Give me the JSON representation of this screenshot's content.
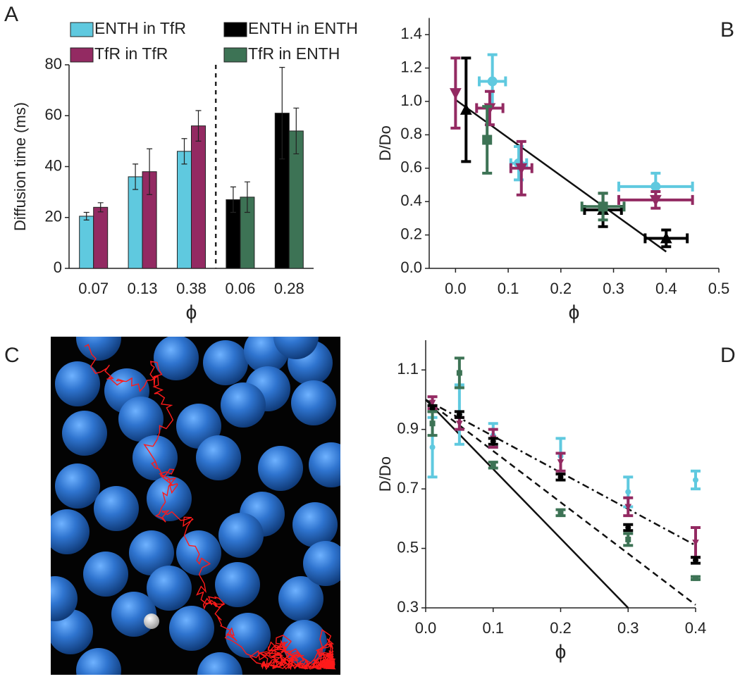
{
  "chart_data": [
    {
      "type": "bar",
      "panel_label": "A",
      "ylabel": "Diffusion time (ms)",
      "xlabel": "ϕ",
      "categories": [
        "0.07",
        "0.13",
        "0.38",
        "0.06",
        "0.28"
      ],
      "ylim": [
        0,
        80
      ],
      "yticks": [
        0,
        20,
        40,
        60,
        80
      ],
      "series": [
        {
          "name": "ENTH in TfR",
          "color": "#5fc9df",
          "values": [
            20.5,
            36,
            46,
            null,
            null
          ],
          "errors": [
            1.5,
            5,
            5,
            null,
            null
          ]
        },
        {
          "name": "TfR in TfR",
          "color": "#932a62",
          "values": [
            24,
            38,
            56,
            null,
            null
          ],
          "errors": [
            1.8,
            9,
            6,
            null,
            null
          ]
        },
        {
          "name": "ENTH in ENTH",
          "color": "#000000",
          "values": [
            null,
            null,
            null,
            27,
            61
          ],
          "errors": [
            null,
            null,
            null,
            5,
            18
          ]
        },
        {
          "name": "TfR in ENTH",
          "color": "#3d7355",
          "values": [
            null,
            null,
            null,
            28,
            54
          ],
          "errors": [
            null,
            null,
            null,
            6,
            9
          ]
        }
      ]
    },
    {
      "type": "scatter",
      "panel_label": "B",
      "ylabel": "D/Do",
      "xlabel": "ϕ",
      "xlim": [
        -0.05,
        0.5
      ],
      "xticks": [
        {
          "value": 0,
          "label": "0.0"
        },
        0.1,
        0.2,
        0.3,
        0.4,
        0.5
      ],
      "ylim": [
        0,
        1.5
      ],
      "yticks": [
        {
          "value": 0,
          "label": "0.0"
        },
        0.2,
        0.4,
        0.6,
        0.8,
        {
          "value": 1,
          "label": "1.0"
        },
        1.2,
        1.4
      ],
      "series": [
        {
          "color": "#5fc9df",
          "marker": "circle",
          "x": [
            0.07,
            0.12,
            0.38
          ],
          "values": [
            1.12,
            0.63,
            0.49
          ],
          "xerr": [
            0.025,
            0.015,
            0.07
          ],
          "errors": [
            0.16,
            0.1,
            0.08
          ]
        },
        {
          "color": "#932a62",
          "marker": "triangle-down",
          "x": [
            0,
            0.065,
            0.125,
            0.38
          ],
          "values": [
            1.05,
            0.96,
            0.6,
            0.41
          ],
          "xerr": [
            null,
            0.025,
            0.02,
            0.07
          ],
          "errors": [
            0.21,
            0.1,
            0.16,
            0.05
          ]
        },
        {
          "color": "#000000",
          "marker": "triangle-up",
          "x": [
            0.02,
            0.28,
            0.4
          ],
          "values": [
            0.95,
            0.35,
            0.18
          ],
          "xerr": [
            null,
            0.035,
            0.04
          ],
          "errors": [
            0.31,
            0.1,
            0.05
          ]
        },
        {
          "color": "#3d7355",
          "marker": "square",
          "x": [
            0.06,
            0.28
          ],
          "values": [
            0.77,
            0.37
          ],
          "xerr": [
            null,
            0.04
          ],
          "errors": [
            0.2,
            0.08
          ]
        }
      ],
      "lines": [
        {
          "style": "solid",
          "x": [
            0,
            0.4
          ],
          "y": [
            1.01,
            0.1
          ]
        }
      ]
    },
    {
      "type": "scatter",
      "panel_label": "D",
      "ylabel": "D/Do",
      "xlabel": "ϕ",
      "xlim": [
        0,
        0.4
      ],
      "xticks": [
        {
          "value": 0,
          "label": "0.0"
        },
        0.1,
        0.2,
        0.3,
        0.4
      ],
      "ylim": [
        0.3,
        1.2
      ],
      "yticks": [
        0.3,
        0.5,
        0.7,
        0.9,
        1.1
      ],
      "series": [
        {
          "color": "#5fc9df",
          "marker": "circle",
          "x": [
            0.01,
            0.05,
            0.1,
            0.2,
            0.3,
            0.4
          ],
          "values": [
            0.84,
            0.95,
            0.88,
            0.81,
            0.69,
            0.73
          ],
          "errors": [
            0.1,
            0.1,
            0.04,
            0.06,
            0.05,
            0.03
          ]
        },
        {
          "color": "#932a62",
          "marker": "triangle-down",
          "x": [
            0.01,
            0.05,
            0.1,
            0.2,
            0.3,
            0.4
          ],
          "values": [
            0.99,
            0.92,
            0.87,
            0.79,
            0.64,
            0.52
          ],
          "errors": [
            0.02,
            0.02,
            0.03,
            0.03,
            0.03,
            0.05
          ]
        },
        {
          "color": "#000000",
          "marker": "circle",
          "x": [
            0.01,
            0.05,
            0.1,
            0.2,
            0.3,
            0.4
          ],
          "values": [
            0.97,
            0.95,
            0.86,
            0.74,
            0.57,
            0.46
          ],
          "errors": [
            0.01,
            0.01,
            0.01,
            0.01,
            0.01,
            0.01
          ]
        },
        {
          "color": "#3d7355",
          "marker": "square",
          "x": [
            0.01,
            0.05,
            0.1,
            0.2,
            0.3,
            0.4
          ],
          "values": [
            0.92,
            1.09,
            0.78,
            0.62,
            0.53,
            0.4
          ],
          "errors": [
            0.04,
            0.05,
            0.01,
            0.01,
            0.02,
            0.005
          ]
        }
      ],
      "lines": [
        {
          "style": "solid",
          "x": [
            0,
            0.3
          ],
          "y": [
            1,
            0.3
          ]
        },
        {
          "style": "dashed",
          "x": [
            0,
            0.4
          ],
          "y": [
            1,
            0.31
          ]
        },
        {
          "style": "dashdot",
          "x": [
            0,
            0.4
          ],
          "y": [
            1,
            0.51
          ]
        }
      ]
    }
  ],
  "panel_c": {
    "label": "C"
  }
}
